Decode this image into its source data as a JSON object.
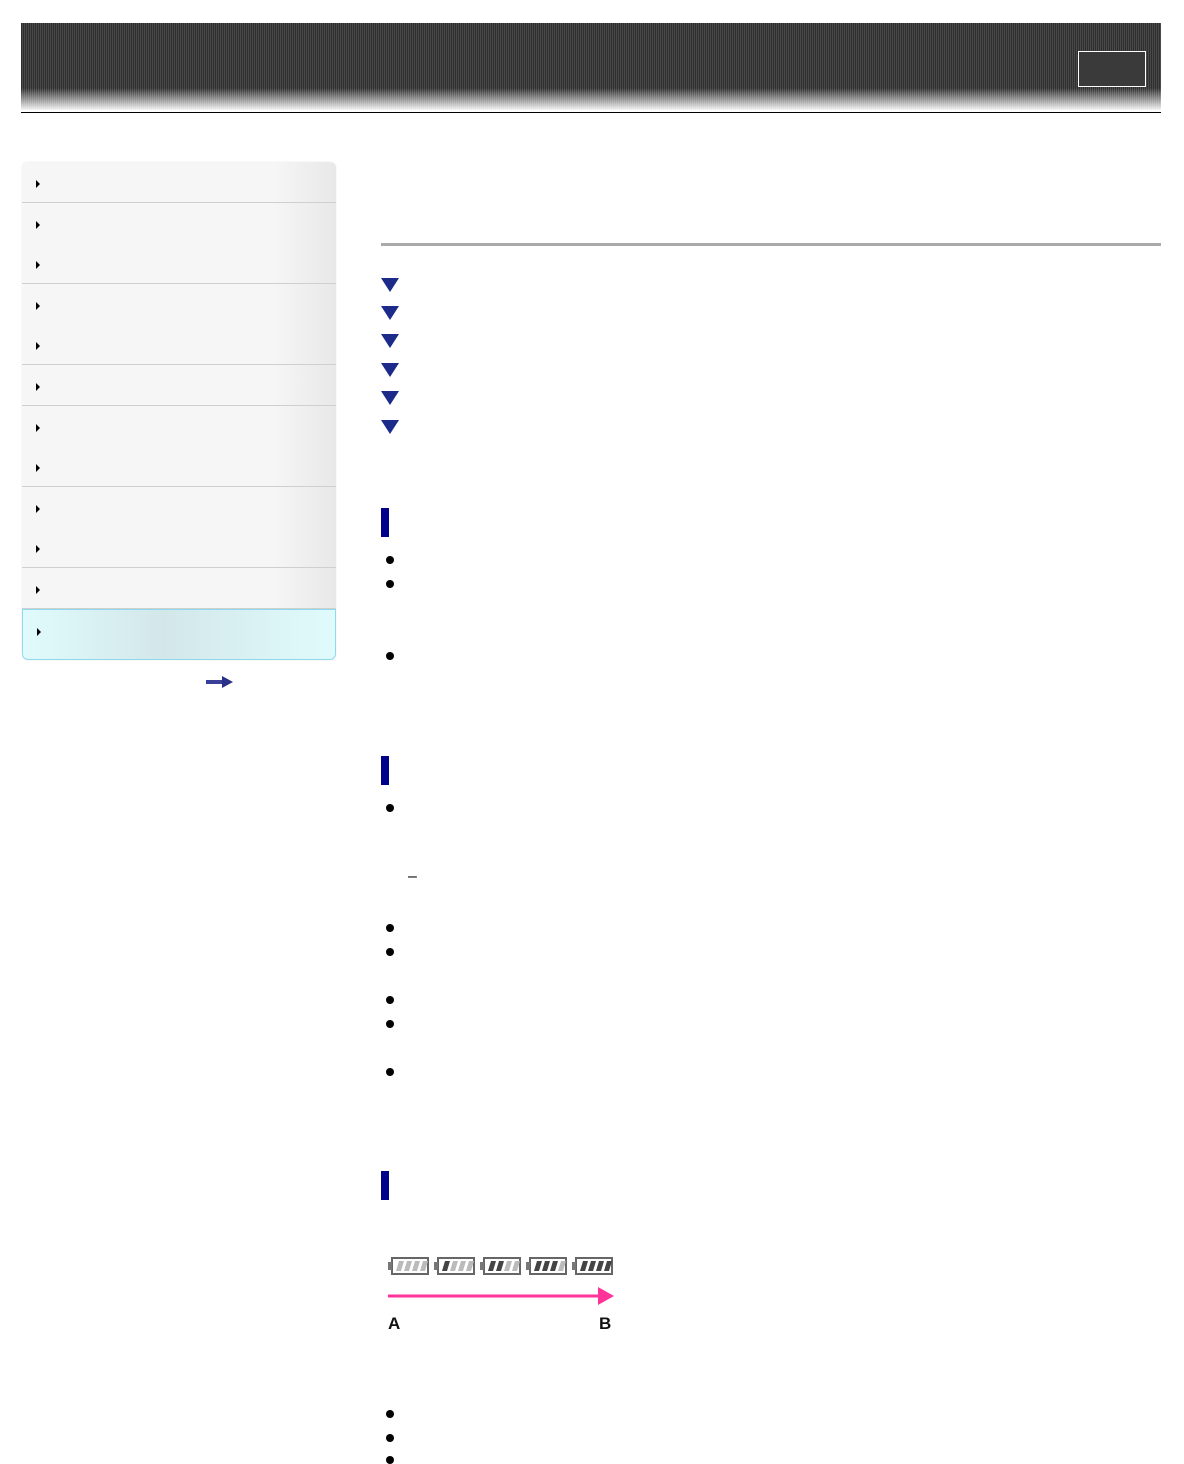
{
  "colors": {
    "section_marker": "#00008b",
    "link_triangle": "#1c2a8a",
    "progress_arrow": "#ff3399",
    "sidebar_active": "#e0fbfd"
  },
  "header": {
    "button_label": ""
  },
  "sidebar": {
    "items": [
      {
        "label": ""
      },
      {
        "label": ""
      },
      {
        "label": ""
      },
      {
        "label": ""
      },
      {
        "label": ""
      },
      {
        "label": ""
      },
      {
        "label": ""
      },
      {
        "label": ""
      },
      {
        "label": ""
      },
      {
        "label": ""
      },
      {
        "label": ""
      },
      {
        "label": "",
        "active": true
      }
    ],
    "more_icon": "arrow-right-icon"
  },
  "main": {
    "title": "",
    "links": [
      {
        "label": ""
      },
      {
        "label": ""
      },
      {
        "label": ""
      },
      {
        "label": ""
      },
      {
        "label": ""
      },
      {
        "label": ""
      }
    ],
    "sections": [
      {
        "heading": "",
        "bullets": 3
      },
      {
        "heading": "",
        "bullets": 6,
        "dash": "–"
      },
      {
        "heading": "",
        "illustration": {
          "icons": [
            "battery-level-icon",
            "battery-level-icon",
            "battery-level-icon",
            "battery-level-icon",
            "battery-level-icon"
          ],
          "start_label": "A",
          "end_label": "B"
        },
        "bullets": 3
      }
    ]
  }
}
